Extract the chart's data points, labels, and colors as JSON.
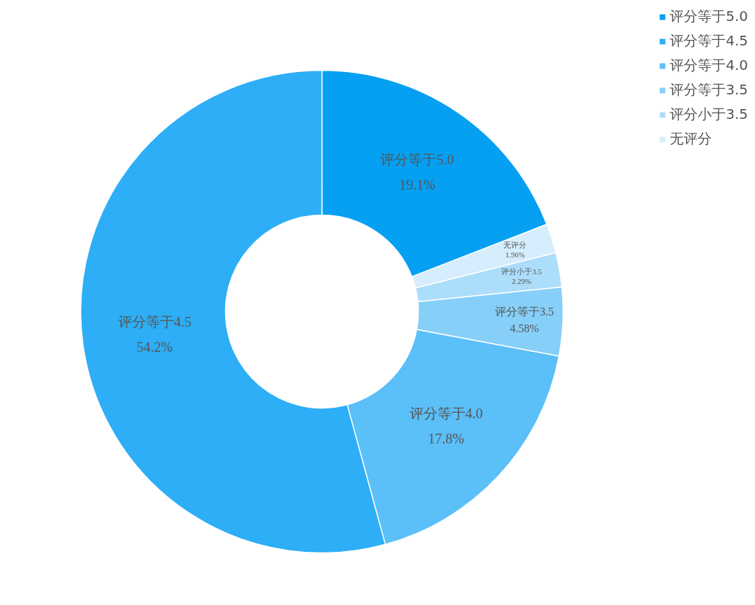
{
  "chart_data": {
    "type": "donut",
    "categories": [
      "评分等于5.0",
      "评分等于4.5",
      "评分等于4.0",
      "评分等于3.5",
      "评分小于3.5",
      "无评分"
    ],
    "values": [
      19.1,
      54.2,
      17.8,
      4.58,
      2.29,
      1.96
    ],
    "value_labels": [
      "19.1%",
      "54.2%",
      "17.8%",
      "4.58%",
      "2.29%",
      "1.96%"
    ],
    "colors": [
      "#05a0f2",
      "#2daef6",
      "#5bbff8",
      "#86cff9",
      "#acddfb",
      "#d5edfc"
    ],
    "legend": "top right"
  }
}
